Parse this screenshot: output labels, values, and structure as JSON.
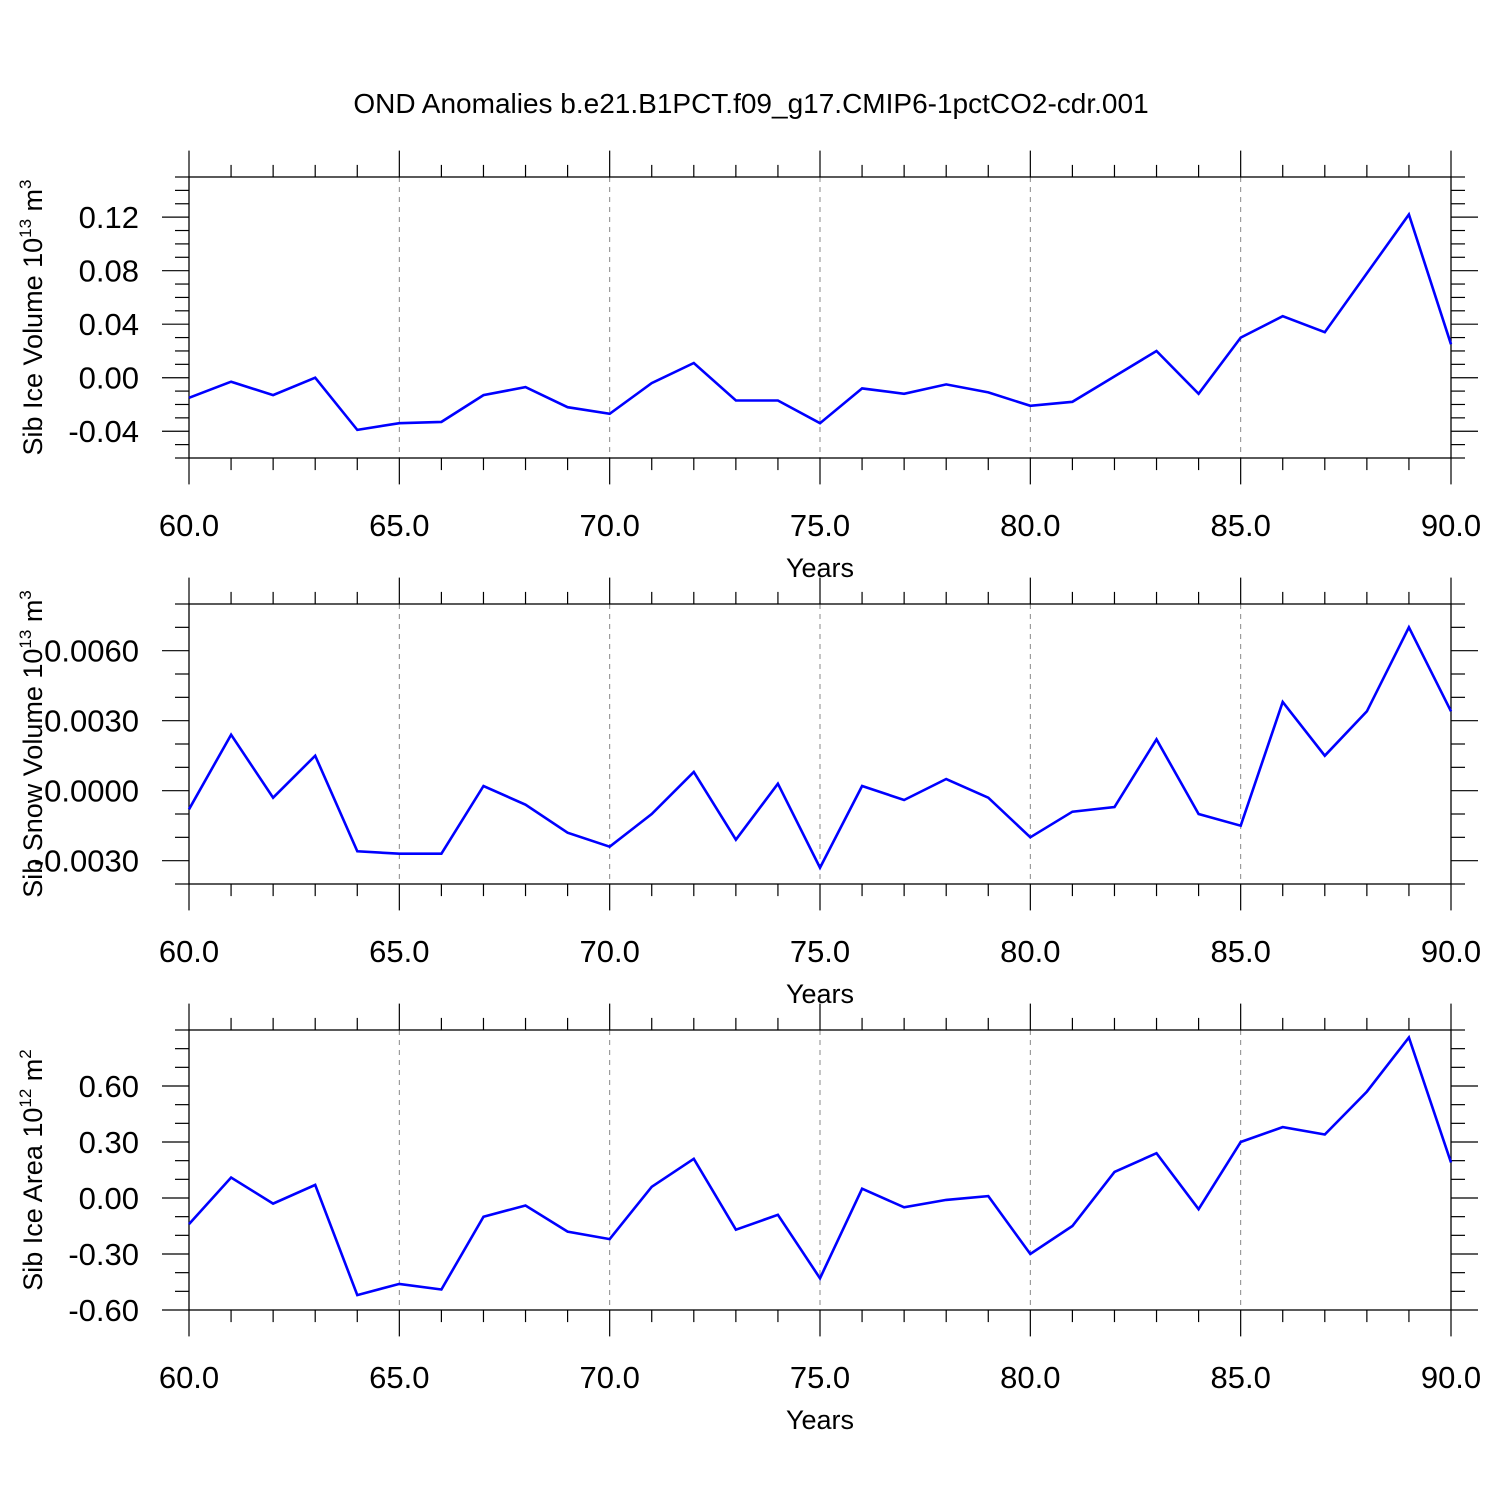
{
  "title": "OND Anomalies b.e21.B1PCT.f09_g17.CMIP6-1pctCO2-cdr.001",
  "chart_data": [
    {
      "type": "line",
      "title": "OND Anomalies b.e21.B1PCT.f09_g17.CMIP6-1pctCO2-cdr.001",
      "xlabel": "Years",
      "ylabel_main": "Sib Ice Volume 10",
      "ylabel_sup": "13",
      "ylabel_unit": " m",
      "ylabel_unit_sup": "3",
      "xlim": [
        60,
        90
      ],
      "ylim": [
        -0.06,
        0.15
      ],
      "xticks": [
        60,
        65,
        70,
        75,
        80,
        85,
        90
      ],
      "xtick_labels": [
        "60.0",
        "65.0",
        "70.0",
        "75.0",
        "80.0",
        "85.0",
        "90.0"
      ],
      "yticks": [
        -0.04,
        0.0,
        0.04,
        0.08,
        0.12
      ],
      "ytick_labels": [
        "-0.04",
        "0.00",
        "0.04",
        "0.08",
        "0.12"
      ],
      "ytick_minor_step": 0.01,
      "grid": "vertical dashed at major x ticks",
      "color": "#0000ff",
      "x": [
        60,
        61,
        62,
        63,
        64,
        65,
        66,
        67,
        68,
        69,
        70,
        71,
        72,
        73,
        74,
        75,
        76,
        77,
        78,
        79,
        80,
        81,
        82,
        83,
        84,
        85,
        86,
        87,
        88,
        89,
        90
      ],
      "values": [
        -0.015,
        -0.003,
        -0.013,
        0.0,
        -0.039,
        -0.034,
        -0.033,
        -0.013,
        -0.007,
        -0.022,
        -0.027,
        -0.004,
        0.011,
        -0.017,
        -0.017,
        -0.034,
        -0.008,
        -0.012,
        -0.005,
        -0.011,
        -0.021,
        -0.018,
        0.001,
        0.02,
        -0.012,
        0.03,
        0.046,
        0.034,
        0.078,
        0.122,
        0.025
      ]
    },
    {
      "type": "line",
      "xlabel": "Years",
      "ylabel_main": "Sib Snow Volume 10",
      "ylabel_sup": "13",
      "ylabel_unit": " m",
      "ylabel_unit_sup": "3",
      "xlim": [
        60,
        90
      ],
      "ylim": [
        -0.004,
        0.008
      ],
      "xticks": [
        60,
        65,
        70,
        75,
        80,
        85,
        90
      ],
      "xtick_labels": [
        "60.0",
        "65.0",
        "70.0",
        "75.0",
        "80.0",
        "85.0",
        "90.0"
      ],
      "yticks": [
        -0.003,
        0.0,
        0.003,
        0.006
      ],
      "ytick_labels": [
        "-0.0030",
        "0.0000",
        "0.0030",
        "0.0060"
      ],
      "ytick_minor_step": 0.001,
      "grid": "vertical dashed at major x ticks",
      "color": "#0000ff",
      "x": [
        60,
        61,
        62,
        63,
        64,
        65,
        66,
        67,
        68,
        69,
        70,
        71,
        72,
        73,
        74,
        75,
        76,
        77,
        78,
        79,
        80,
        81,
        82,
        83,
        84,
        85,
        86,
        87,
        88,
        89,
        90
      ],
      "values": [
        -0.0008,
        0.0024,
        -0.0003,
        0.0015,
        -0.0026,
        -0.0027,
        -0.0027,
        0.0002,
        -0.0006,
        -0.0018,
        -0.0024,
        -0.001,
        0.0008,
        -0.0021,
        0.0003,
        -0.0033,
        0.0002,
        -0.0004,
        0.0005,
        -0.0003,
        -0.002,
        -0.0009,
        -0.0007,
        0.0022,
        -0.001,
        -0.0015,
        0.0038,
        0.0015,
        0.0034,
        0.007,
        0.0034
      ]
    },
    {
      "type": "line",
      "xlabel": "Years",
      "ylabel_main": "Sib Ice Area 10",
      "ylabel_sup": "12",
      "ylabel_unit": " m",
      "ylabel_unit_sup": "2",
      "xlim": [
        60,
        90
      ],
      "ylim": [
        -0.6,
        0.9
      ],
      "xticks": [
        60,
        65,
        70,
        75,
        80,
        85,
        90
      ],
      "xtick_labels": [
        "60.0",
        "65.0",
        "70.0",
        "75.0",
        "80.0",
        "85.0",
        "90.0"
      ],
      "yticks": [
        -0.6,
        -0.3,
        0.0,
        0.3,
        0.6
      ],
      "ytick_labels": [
        "-0.60",
        "-0.30",
        "0.00",
        "0.30",
        "0.60"
      ],
      "ytick_minor_step": 0.1,
      "grid": "vertical dashed at major x ticks",
      "color": "#0000ff",
      "x": [
        60,
        61,
        62,
        63,
        64,
        65,
        66,
        67,
        68,
        69,
        70,
        71,
        72,
        73,
        74,
        75,
        76,
        77,
        78,
        79,
        80,
        81,
        82,
        83,
        84,
        85,
        86,
        87,
        88,
        89,
        90
      ],
      "values": [
        -0.14,
        0.11,
        -0.03,
        0.07,
        -0.52,
        -0.46,
        -0.49,
        -0.1,
        -0.04,
        -0.18,
        -0.22,
        0.06,
        0.21,
        -0.17,
        -0.09,
        -0.43,
        0.05,
        -0.05,
        -0.01,
        0.01,
        -0.3,
        -0.15,
        0.14,
        0.24,
        -0.06,
        0.3,
        0.38,
        0.34,
        0.57,
        0.86,
        0.19
      ]
    }
  ]
}
